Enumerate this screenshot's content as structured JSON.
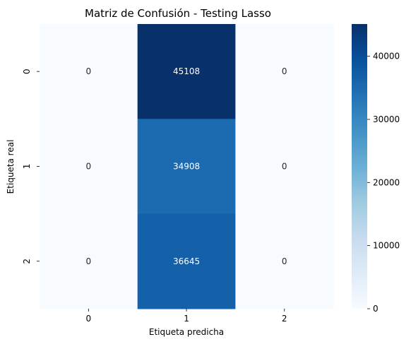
{
  "chart_data": {
    "type": "heatmap",
    "title": "Matriz de Confusión - Testing Lasso",
    "xlabel": "Etiqueta predicha",
    "ylabel": "Etiqueta real",
    "x_categories": [
      "0",
      "1",
      "2"
    ],
    "y_categories": [
      "0",
      "1",
      "2"
    ],
    "values": [
      [
        0,
        45108,
        0
      ],
      [
        0,
        34908,
        0
      ],
      [
        0,
        36645,
        0
      ]
    ],
    "colorbar": {
      "colormap": "Blues",
      "range": [
        0,
        45108
      ],
      "ticks": [
        0,
        10000,
        20000,
        30000,
        40000
      ]
    }
  }
}
